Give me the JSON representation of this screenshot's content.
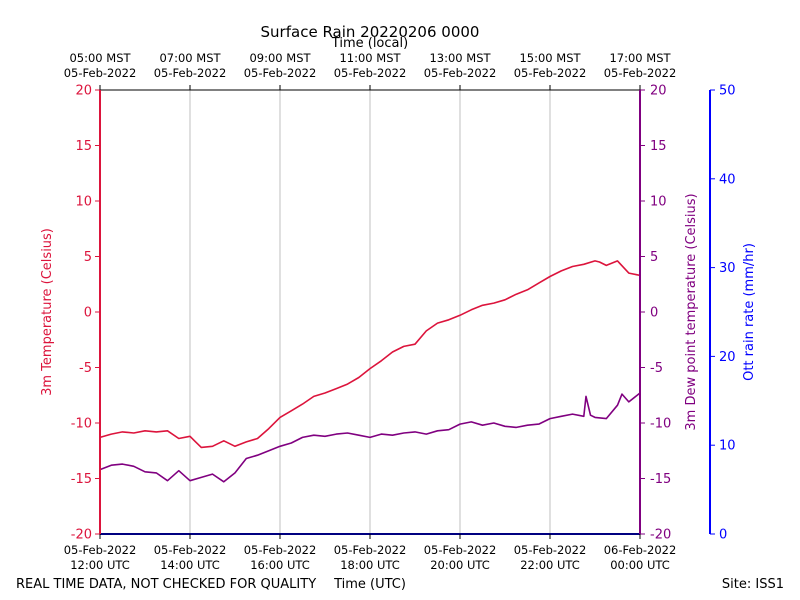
{
  "chart_data": {
    "type": "line",
    "title": "Surface Rain 20220206 0000",
    "top_axis_title": "Time (local)",
    "xlabel": "Time (UTC)",
    "x_unit": "hours UTC since 05-Feb-2022 12:00",
    "x_range": [
      0,
      12
    ],
    "x_ticks": [
      {
        "x": 0,
        "utc_date": "05-Feb-2022",
        "utc_time": "12:00 UTC",
        "local_time": "05:00 MST",
        "local_date": "05-Feb-2022"
      },
      {
        "x": 2,
        "utc_date": "05-Feb-2022",
        "utc_time": "14:00 UTC",
        "local_time": "07:00 MST",
        "local_date": "05-Feb-2022"
      },
      {
        "x": 4,
        "utc_date": "05-Feb-2022",
        "utc_time": "16:00 UTC",
        "local_time": "09:00 MST",
        "local_date": "05-Feb-2022"
      },
      {
        "x": 6,
        "utc_date": "05-Feb-2022",
        "utc_time": "18:00 UTC",
        "local_time": "11:00 MST",
        "local_date": "05-Feb-2022"
      },
      {
        "x": 8,
        "utc_date": "05-Feb-2022",
        "utc_time": "20:00 UTC",
        "local_time": "13:00 MST",
        "local_date": "05-Feb-2022"
      },
      {
        "x": 10,
        "utc_date": "05-Feb-2022",
        "utc_time": "22:00 UTC",
        "local_time": "15:00 MST",
        "local_date": "05-Feb-2022"
      },
      {
        "x": 12,
        "utc_date": "06-Feb-2022",
        "utc_time": "00:00 UTC",
        "local_time": "17:00 MST",
        "local_date": "05-Feb-2022"
      }
    ],
    "grid": "vertical",
    "left_axis": {
      "label": "3m Temperature (Celsius)",
      "range": [
        -20,
        20
      ],
      "ticks": [
        -20,
        -15,
        -10,
        -5,
        0,
        5,
        10,
        15,
        20
      ],
      "color": "#dc143c"
    },
    "right_axis": {
      "label": "3m Dew point temperature (Celsius)",
      "range": [
        -20,
        20
      ],
      "ticks": [
        -20,
        -15,
        -10,
        -5,
        0,
        5,
        10,
        15,
        20
      ],
      "color": "#800080"
    },
    "rain_axis": {
      "label": "Ott rain rate (mm/hr)",
      "range": [
        0,
        50
      ],
      "ticks": [
        0,
        10,
        20,
        30,
        40,
        50
      ],
      "color": "#0000ff"
    },
    "series": [
      {
        "name": "3m Temperature",
        "axis": "left",
        "color": "#dc143c",
        "x": [
          0,
          0.25,
          0.5,
          0.75,
          1.0,
          1.25,
          1.5,
          1.75,
          2.0,
          2.1,
          2.25,
          2.5,
          2.75,
          3.0,
          3.25,
          3.5,
          3.75,
          4.0,
          4.25,
          4.5,
          4.75,
          5.0,
          5.25,
          5.5,
          5.75,
          6.0,
          6.25,
          6.5,
          6.75,
          7.0,
          7.25,
          7.5,
          7.75,
          8.0,
          8.25,
          8.5,
          8.75,
          9.0,
          9.25,
          9.5,
          9.75,
          10.0,
          10.25,
          10.5,
          10.75,
          11.0,
          11.1,
          11.25,
          11.5,
          11.75,
          12.0
        ],
        "values": [
          -11.3,
          -11.0,
          -10.8,
          -10.9,
          -10.7,
          -10.8,
          -10.7,
          -11.4,
          -11.2,
          -11.6,
          -12.2,
          -12.1,
          -11.6,
          -12.1,
          -11.7,
          -11.4,
          -10.5,
          -9.5,
          -8.9,
          -8.3,
          -7.6,
          -7.3,
          -6.9,
          -6.5,
          -5.9,
          -5.1,
          -4.4,
          -3.6,
          -3.1,
          -2.9,
          -1.7,
          -1.0,
          -0.7,
          -0.3,
          0.2,
          0.6,
          0.8,
          1.1,
          1.6,
          2.0,
          2.6,
          3.2,
          3.7,
          4.1,
          4.3,
          4.6,
          4.5,
          4.2,
          4.6,
          3.5,
          3.3
        ]
      },
      {
        "name": "3m Dew point temperature",
        "axis": "right",
        "color": "#800080",
        "x": [
          0,
          0.25,
          0.5,
          0.75,
          1.0,
          1.25,
          1.5,
          1.75,
          2.0,
          2.25,
          2.5,
          2.75,
          3.0,
          3.25,
          3.5,
          3.75,
          4.0,
          4.25,
          4.5,
          4.75,
          5.0,
          5.25,
          5.5,
          5.75,
          6.0,
          6.25,
          6.5,
          6.75,
          7.0,
          7.25,
          7.5,
          7.75,
          8.0,
          8.25,
          8.5,
          8.75,
          9.0,
          9.25,
          9.5,
          9.75,
          10.0,
          10.25,
          10.5,
          10.75,
          10.8,
          10.9,
          11.0,
          11.25,
          11.5,
          11.6,
          11.75,
          12.0
        ],
        "values": [
          -14.2,
          -13.8,
          -13.7,
          -13.9,
          -14.4,
          -14.5,
          -15.2,
          -14.3,
          -15.2,
          -14.9,
          -14.6,
          -15.3,
          -14.5,
          -13.2,
          -12.9,
          -12.5,
          -12.1,
          -11.8,
          -11.3,
          -11.1,
          -11.2,
          -11.0,
          -10.9,
          -11.1,
          -11.3,
          -11.0,
          -11.1,
          -10.9,
          -10.8,
          -11.0,
          -10.7,
          -10.6,
          -10.1,
          -9.9,
          -10.2,
          -10.0,
          -10.3,
          -10.4,
          -10.2,
          -10.1,
          -9.6,
          -9.4,
          -9.2,
          -9.4,
          -7.6,
          -9.3,
          -9.5,
          -9.6,
          -8.4,
          -7.4,
          -8.1,
          -7.3
        ]
      },
      {
        "name": "Ott rain rate",
        "axis": "rain",
        "color": "#0000ff",
        "x": [
          0,
          12
        ],
        "values": [
          0,
          0
        ]
      }
    ]
  },
  "footer": {
    "disclaimer": "REAL TIME DATA, NOT CHECKED FOR QUALITY",
    "site": "Site: ISS1"
  }
}
